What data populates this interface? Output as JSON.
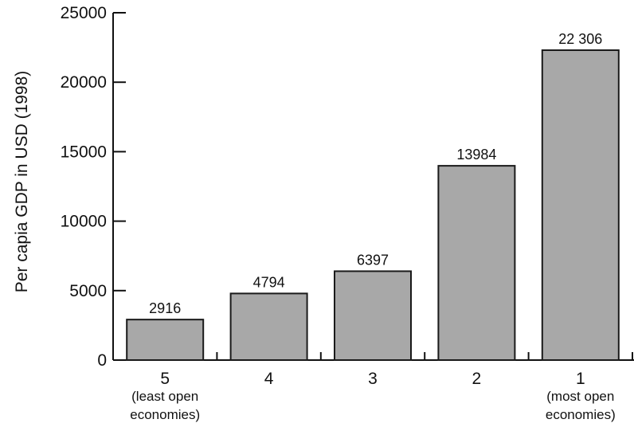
{
  "chart_data": {
    "type": "bar",
    "categories": [
      "5",
      "4",
      "3",
      "2",
      "1"
    ],
    "category_sublabels": [
      [
        "(least open",
        "economies)"
      ],
      [],
      [],
      [],
      [
        "(most open",
        "economies)"
      ]
    ],
    "values": [
      2916,
      4794,
      6397,
      13984,
      22306
    ],
    "value_labels": [
      "2916",
      "4794",
      "6397",
      "13984",
      "22 306"
    ],
    "ylabel": "Per capia GDP in USD (1998)",
    "xlabel": "",
    "ylim": [
      0,
      25000
    ],
    "yticks": [
      0,
      5000,
      10000,
      15000,
      20000,
      25000
    ],
    "ytick_labels": [
      "0",
      "5000",
      "10000",
      "15000",
      "20000",
      "25000"
    ],
    "grid": false,
    "colors": {
      "bar_fill": "#a8a8a8",
      "bar_stroke": "#1a1a1a",
      "axis": "#111111"
    }
  }
}
